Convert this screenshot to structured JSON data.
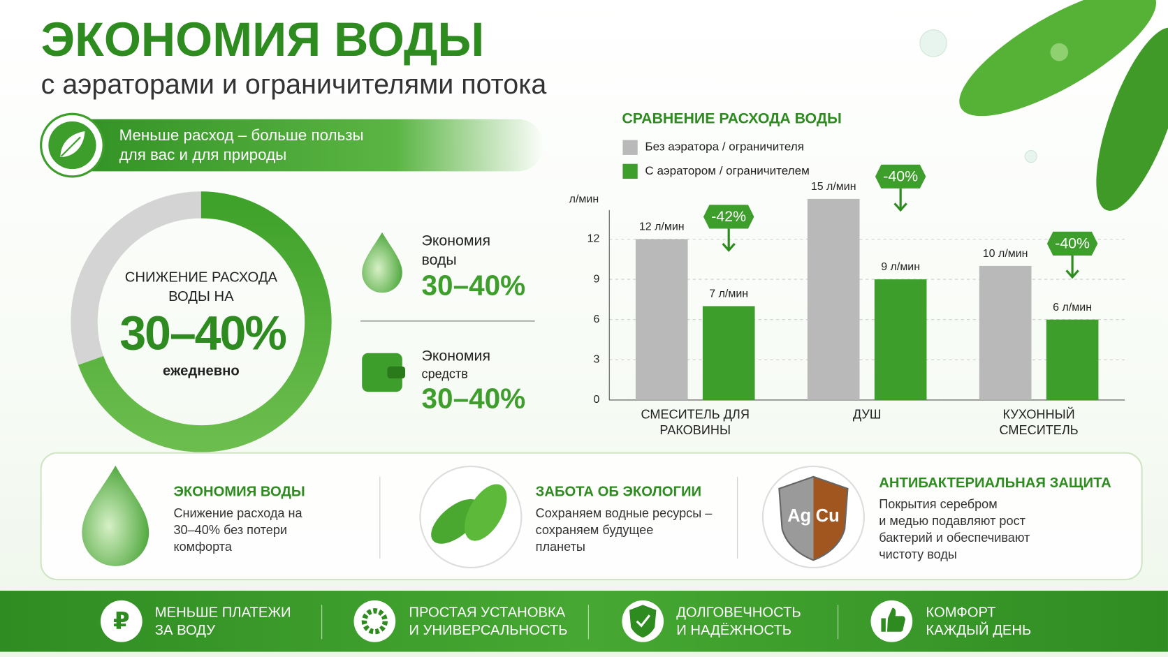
{
  "header": {
    "title": "ЭКОНОМИЯ ВОДЫ",
    "subtitle": "с аэраторами и ограничителями потока"
  },
  "banner": {
    "lines": [
      "Меньше расход – больше пользы",
      "для вас и для природы"
    ]
  },
  "donut": {
    "label_lines": [
      "СНИЖЕНИЕ РАСХОДА",
      "ВОДЫ НА"
    ],
    "value": "30–40%",
    "caption": "ежедневно"
  },
  "stats": [
    {
      "title_lines": [
        "Экономия",
        "воды"
      ],
      "value": "30–40%"
    },
    {
      "title_lines": [
        "Экономия",
        "средств"
      ],
      "value": "30–40%"
    }
  ],
  "chart_data": {
    "type": "bar",
    "title": "СРАВНЕНИЕ РАСХОДА ВОДЫ",
    "y_label": "л/мин",
    "categories": [
      "СМЕСИТЕЛЬ ДЛЯ РАКОВИНЫ",
      "ДУШ",
      "КУХОННЫЙ СМЕСИТЕЛЬ"
    ],
    "series": [
      {
        "name": "Без аэратора / ограничителя",
        "color": "#b9b9b9",
        "values": [
          12,
          15,
          10
        ],
        "value_labels": [
          "12 л/мин",
          "15 л/мин",
          "10 л/мин"
        ]
      },
      {
        "name": "С аэратором / ограничителем",
        "color": "#3e9e2c",
        "values": [
          7,
          9,
          6
        ],
        "value_labels": [
          "7 л/мин",
          "9 л/мин",
          "6 л/мин"
        ]
      }
    ],
    "reductions": [
      "-42%",
      "-40%",
      "-40%"
    ],
    "ylim": [
      0,
      15
    ],
    "yticks": [
      0,
      3,
      6,
      9,
      12
    ],
    "grid": true
  },
  "features": [
    {
      "title": "ЭКОНОМИЯ ВОДЫ",
      "lines": [
        "Снижение расхода на",
        "30–40% без потери",
        "комфорта"
      ]
    },
    {
      "title": "ЗАБОТА ОБ ЭКОЛОГИИ",
      "lines": [
        "Сохраняем водные ресурсы –",
        "сохраняем будущее",
        "планеты"
      ]
    },
    {
      "title": "АНТИБАКТЕРИАЛЬНАЯ ЗАЩИТА",
      "lines": [
        "Покрытия серебром",
        "и медью подавляют рост",
        "бактерий и обеспечивают",
        "чистоту воды"
      ],
      "icon_labels": [
        "Ag",
        "Cu"
      ]
    }
  ],
  "footer": [
    {
      "lines": [
        "МЕНЬШЕ ПЛАТЕЖИ",
        "ЗА ВОДУ"
      ],
      "icon": "₽"
    },
    {
      "lines": [
        "ПРОСТАЯ УСТАНОВКА",
        "И УНИВЕРСАЛЬНОСТЬ"
      ]
    },
    {
      "lines": [
        "ДОЛГОВЕЧНОСТЬ",
        "И НАДЁЖНОСТЬ"
      ]
    },
    {
      "lines": [
        "КОМФОРТ",
        "КАЖДЫЙ ДЕНЬ"
      ]
    }
  ]
}
